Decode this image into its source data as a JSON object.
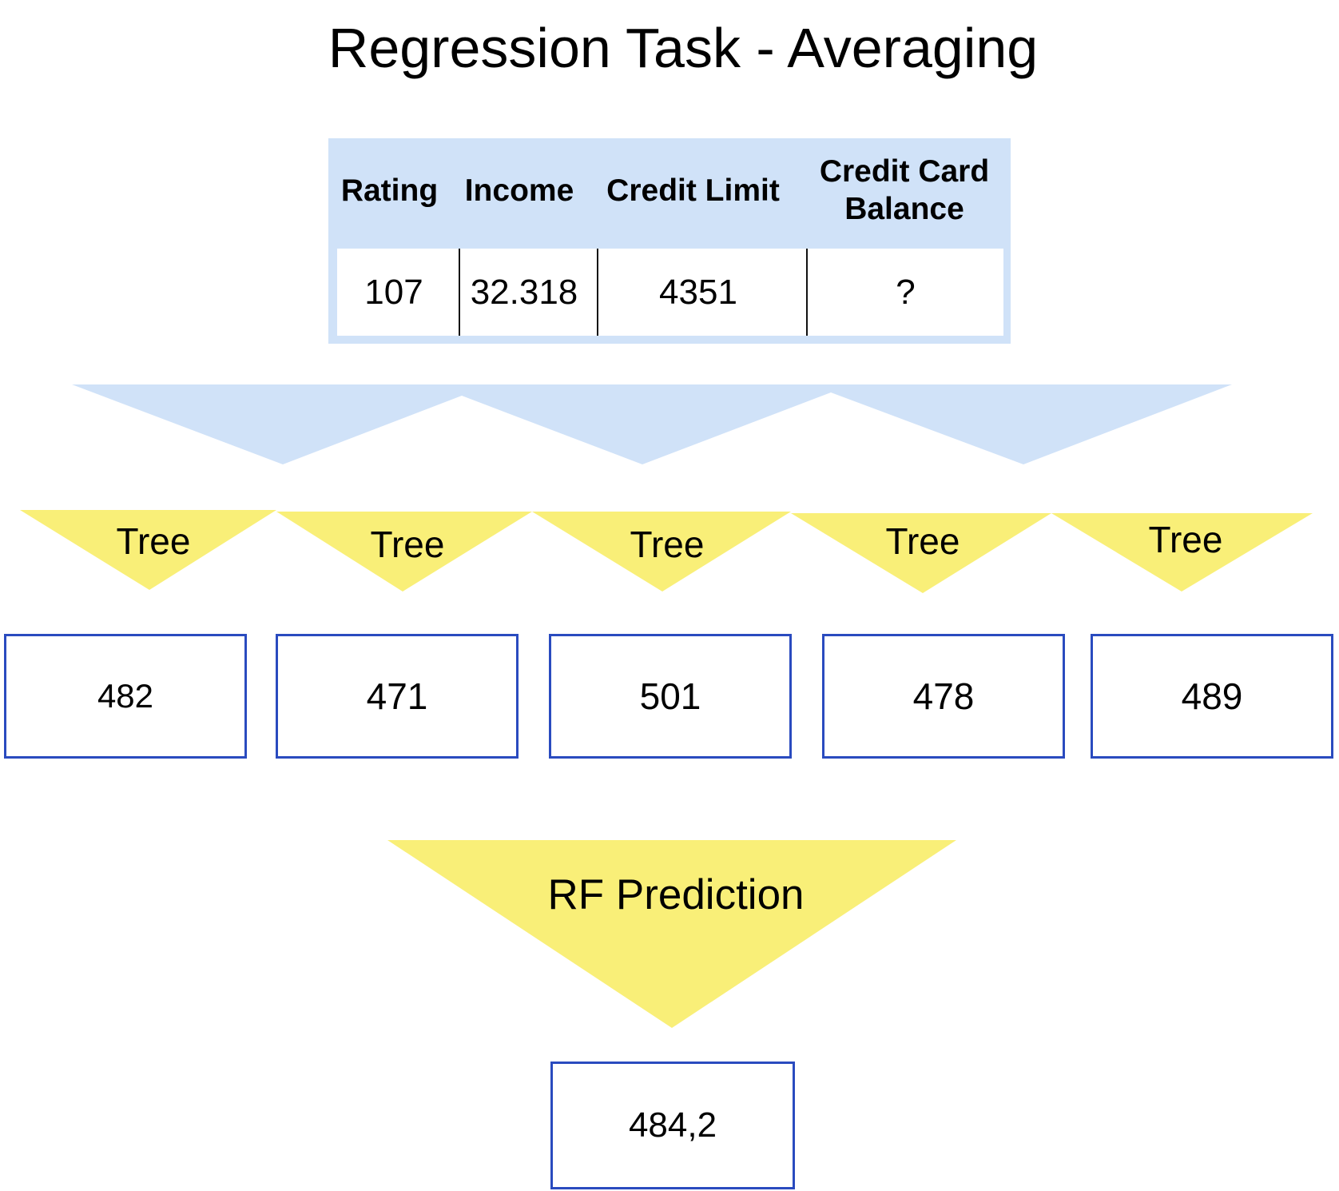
{
  "title": "Regression Task - Averaging",
  "table": {
    "headers": [
      "Rating",
      "Income",
      "Credit Limit",
      "Credit Card\nBalance"
    ],
    "row": [
      "107",
      "32.318",
      "4351",
      "?"
    ]
  },
  "trees": [
    {
      "label": "Tree",
      "prediction": "482"
    },
    {
      "label": "Tree",
      "prediction": "471"
    },
    {
      "label": "Tree",
      "prediction": "501"
    },
    {
      "label": "Tree",
      "prediction": "478"
    },
    {
      "label": "Tree",
      "prediction": "489"
    }
  ],
  "rf": {
    "label": "RF Prediction",
    "result": "484,2"
  },
  "colors": {
    "blue_fill": "#d0e2f8",
    "yellow_fill": "#f9ef78",
    "box_border": "#2a4bbf"
  }
}
